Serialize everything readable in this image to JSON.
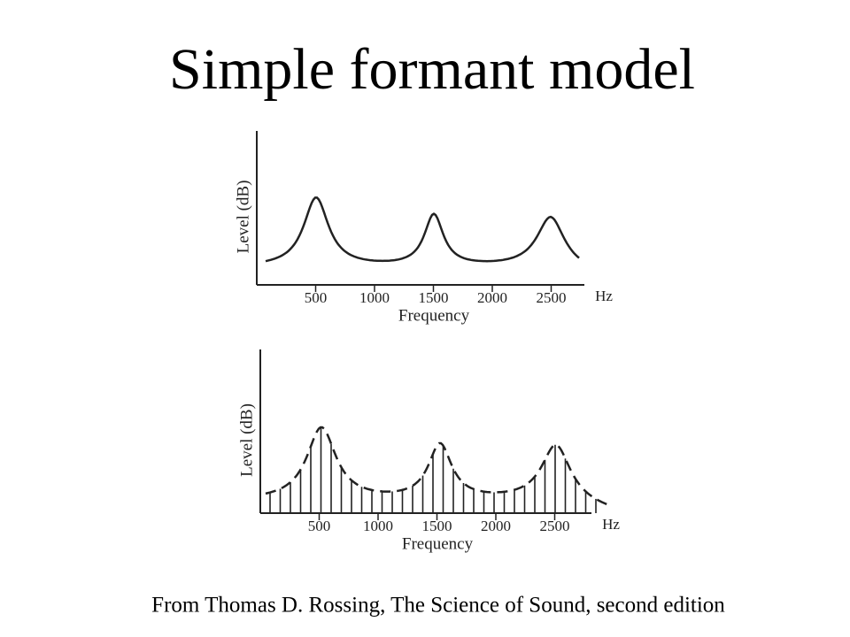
{
  "title": "Simple formant model",
  "figures": [
    {
      "y_label": "Level (dB)",
      "x_label": "Frequency",
      "x_unit": "Hz",
      "xticks": [
        500,
        1000,
        1500,
        2000,
        2500
      ]
    },
    {
      "y_label": "Level (dB)",
      "x_label": "Frequency",
      "x_unit": "Hz",
      "xticks": [
        500,
        1000,
        1500,
        2000,
        2500
      ]
    }
  ],
  "caption": "From Thomas D. Rossing, The Science of Sound, second edition"
}
